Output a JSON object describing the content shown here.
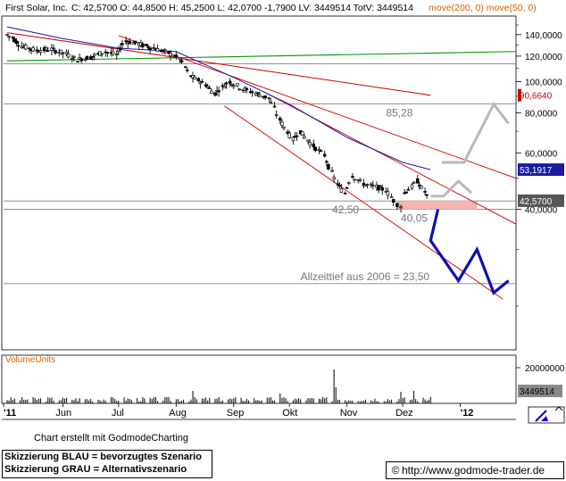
{
  "header": {
    "title": "First Solar, Inc.",
    "ohlc": "C: 42,5700 O: 44,8500 H: 45,2500 L: 42,0700 -1,7900 LV: 3449514 TotV: 3449514",
    "indicators": "move(200, 0) move(50, 0)"
  },
  "footer": {
    "credit": "Chart erstellt mit GodmodeCharting",
    "legend_blue": "Skizzierung BLAU = bevorzugtes Szenario",
    "legend_grey": "Skizzierung GRAU = Alternativszenario",
    "url": "http://www.godmode-trader.de"
  },
  "colors": {
    "price": "#000000",
    "ma200": "#cc0000",
    "ma50": "#1a1aa0",
    "channel": "#dd1111",
    "green": "#009900",
    "scenario_blue": "#0a10b0",
    "scenario_grey": "#b8b8b8",
    "zone": "#f5b5b5",
    "hline": "#808080"
  },
  "chart_data": {
    "type": "candlestick",
    "y_axis": {
      "min": 15,
      "max": 150,
      "scale": "log",
      "ticks": [
        {
          "value": 140,
          "label": "140,0000"
        },
        {
          "value": 120,
          "label": "120,0000"
        },
        {
          "value": 100,
          "label": "100,0000"
        },
        {
          "value": 80,
          "label": "80,0000"
        },
        {
          "value": 60,
          "label": "60,0000"
        },
        {
          "value": 40,
          "label": "40,0000"
        }
      ]
    },
    "x_axis": {
      "start": "2011-05-02",
      "end": "2012-01-31",
      "labels": [
        {
          "date": "2011-05-01",
          "label": "'11"
        },
        {
          "date": "2011-06-01",
          "label": "Jun"
        },
        {
          "date": "2011-07-01",
          "label": "Jul"
        },
        {
          "date": "2011-08-01",
          "label": "Aug"
        },
        {
          "date": "2011-09-01",
          "label": "Sep"
        },
        {
          "date": "2011-10-01",
          "label": "Okt"
        },
        {
          "date": "2011-11-01",
          "label": "Nov"
        },
        {
          "date": "2011-12-01",
          "label": "Dez"
        },
        {
          "date": "2012-01-01",
          "label": "'12"
        }
      ]
    },
    "price_path": [
      {
        "date": "2011-05-02",
        "close": 140
      },
      {
        "date": "2011-05-05",
        "close": 137
      },
      {
        "date": "2011-05-10",
        "close": 129
      },
      {
        "date": "2011-05-18",
        "close": 125
      },
      {
        "date": "2011-05-26",
        "close": 126
      },
      {
        "date": "2011-06-03",
        "close": 122
      },
      {
        "date": "2011-06-09",
        "close": 117
      },
      {
        "date": "2011-06-16",
        "close": 119
      },
      {
        "date": "2011-06-24",
        "close": 124
      },
      {
        "date": "2011-06-30",
        "close": 121
      },
      {
        "date": "2011-07-05",
        "close": 134
      },
      {
        "date": "2011-07-12",
        "close": 131
      },
      {
        "date": "2011-07-20",
        "close": 127
      },
      {
        "date": "2011-07-28",
        "close": 123
      },
      {
        "date": "2011-08-03",
        "close": 118
      },
      {
        "date": "2011-08-09",
        "close": 104
      },
      {
        "date": "2011-08-17",
        "close": 98
      },
      {
        "date": "2011-08-22",
        "close": 92
      },
      {
        "date": "2011-08-30",
        "close": 100
      },
      {
        "date": "2011-09-06",
        "close": 95
      },
      {
        "date": "2011-09-13",
        "close": 92
      },
      {
        "date": "2011-09-20",
        "close": 89
      },
      {
        "date": "2011-09-26",
        "close": 76
      },
      {
        "date": "2011-10-03",
        "close": 66
      },
      {
        "date": "2011-10-07",
        "close": 70
      },
      {
        "date": "2011-10-14",
        "close": 63
      },
      {
        "date": "2011-10-20",
        "close": 59
      },
      {
        "date": "2011-10-24",
        "close": 52
      },
      {
        "date": "2011-10-27",
        "close": 48
      },
      {
        "date": "2011-10-31",
        "close": 45
      },
      {
        "date": "2011-11-04",
        "close": 51
      },
      {
        "date": "2011-11-10",
        "close": 48
      },
      {
        "date": "2011-11-17",
        "close": 47
      },
      {
        "date": "2011-11-22",
        "close": 46
      },
      {
        "date": "2011-11-28",
        "close": 41.5
      },
      {
        "date": "2011-11-30",
        "close": 41
      },
      {
        "date": "2011-12-02",
        "close": 45
      },
      {
        "date": "2011-12-06",
        "close": 47
      },
      {
        "date": "2011-12-09",
        "close": 49
      },
      {
        "date": "2011-12-13",
        "close": 45.5
      },
      {
        "date": "2011-12-16",
        "close": 42.57
      }
    ],
    "last": {
      "value": 42.57,
      "label": "42,5700"
    },
    "ma200": {
      "start": {
        "date": "2011-05-02",
        "value": 142
      },
      "end": {
        "date": "2011-12-16",
        "value": 90.664
      },
      "label": "90,6640"
    },
    "ma50": {
      "label": "53,1917",
      "points": [
        {
          "date": "2011-05-02",
          "value": 148
        },
        {
          "date": "2011-06-01",
          "value": 136
        },
        {
          "date": "2011-07-01",
          "value": 127
        },
        {
          "date": "2011-08-01",
          "value": 124
        },
        {
          "date": "2011-09-01",
          "value": 103
        },
        {
          "date": "2011-10-01",
          "value": 85
        },
        {
          "date": "2011-11-01",
          "value": 67
        },
        {
          "date": "2011-12-01",
          "value": 56
        },
        {
          "date": "2011-12-16",
          "value": 53.1917
        }
      ]
    },
    "green_line": {
      "start": {
        "date": "2011-05-02",
        "value": 116
      },
      "end": {
        "date": "2012-01-31",
        "value": 124
      }
    },
    "channel_upper": {
      "start": {
        "date": "2011-07-01",
        "value": 139
      },
      "end": {
        "date": "2012-01-31",
        "value": 50
      }
    },
    "channel_lower": {
      "start": {
        "date": "2011-08-27",
        "value": 84
      },
      "end": {
        "date": "2012-01-24",
        "value": 21
      }
    },
    "channel_far": {
      "start": {
        "date": "2011-09-17",
        "value": 93
      },
      "end": {
        "date": "2012-01-31",
        "value": 36
      }
    },
    "horizontal_lines": [
      {
        "value": 113.5
      },
      {
        "value": 85.28,
        "label": "85,28",
        "label_date": "2011-11-22"
      },
      {
        "value": 42.5,
        "label": "42,50",
        "label_date": "2011-10-24"
      },
      {
        "value": 40.05,
        "label": "40,05",
        "label_date": "2011-11-30"
      },
      {
        "value": 23.5,
        "label": "Allzeittief aus 2006 = 23,50",
        "label_date": "2011-10-07"
      }
    ],
    "support_zone": {
      "from": 40.05,
      "to": 42.5,
      "start": "2011-11-28",
      "end": "2012-01-10"
    },
    "scenario_blue": [
      {
        "date": "2011-12-20",
        "value": 40.05
      },
      {
        "date": "2011-12-16",
        "value": 32
      },
      {
        "date": "2011-12-31",
        "value": 24
      },
      {
        "date": "2012-01-10",
        "value": 30
      },
      {
        "date": "2012-01-19",
        "value": 22
      },
      {
        "date": "2012-01-27",
        "value": 24
      }
    ],
    "scenario_grey_1": [
      {
        "date": "2011-12-16",
        "value": 44
      },
      {
        "date": "2011-12-23",
        "value": 44
      },
      {
        "date": "2011-12-31",
        "value": 49
      },
      {
        "date": "2012-01-07",
        "value": 45
      }
    ],
    "scenario_grey_2": [
      {
        "date": "2011-12-22",
        "value": 56
      },
      {
        "date": "2012-01-03",
        "value": 56
      },
      {
        "date": "2012-01-19",
        "value": 85
      },
      {
        "date": "2012-01-27",
        "value": 74
      }
    ],
    "volume": {
      "label": "VolumeUnits",
      "tick": "20000000",
      "last": {
        "value": 3449514,
        "label": "3449514"
      },
      "max": 25000000,
      "spikes": [
        {
          "date": "2011-10-25",
          "value": 19000000
        },
        {
          "date": "2011-10-26",
          "value": 9000000
        },
        {
          "date": "2011-08-10",
          "value": 7000000
        },
        {
          "date": "2011-11-30",
          "value": 6500000
        },
        {
          "date": "2011-12-07",
          "value": 7000000
        },
        {
          "date": "2011-09-26",
          "value": 5500000
        }
      ]
    }
  }
}
